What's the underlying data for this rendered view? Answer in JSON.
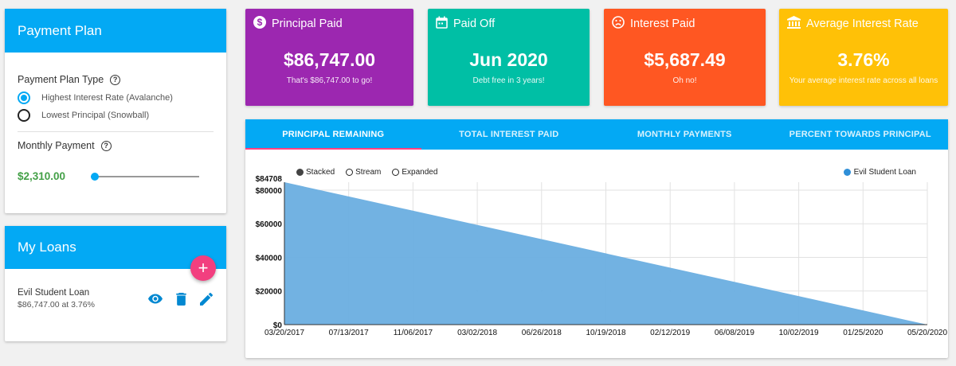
{
  "payment_plan": {
    "title": "Payment Plan",
    "plan_type_label": "Payment Plan Type",
    "options": [
      "Highest Interest Rate (Avalanche)",
      "Lowest Principal (Snowball)"
    ],
    "selected_option": "Highest Interest Rate (Avalanche)",
    "monthly_payment_label": "Monthly Payment",
    "monthly_payment_value": "$2,310.00",
    "slider_fraction": 0.0
  },
  "my_loans": {
    "title": "My Loans",
    "add_label": "+",
    "loans": [
      {
        "name": "Evil Student Loan",
        "detail": "$86,747.00 at 3.76%"
      }
    ]
  },
  "tiles": [
    {
      "title": "Principal Paid",
      "icon": "dollar-icon",
      "value": "$86,747.00",
      "sub": "That's $86,747.00 to go!",
      "color": "#9c27b0"
    },
    {
      "title": "Paid Off",
      "icon": "calendar-icon",
      "value": "Jun 2020",
      "sub": "Debt free in 3 years!",
      "color": "#00bfa5"
    },
    {
      "title": "Interest Paid",
      "icon": "sad-face-icon",
      "value": "$5,687.49",
      "sub": "Oh no!",
      "color": "#ff5722"
    },
    {
      "title": "Average Interest Rate",
      "icon": "bank-icon",
      "value": "3.76%",
      "sub": "Your average interest rate across all loans",
      "color": "#ffc107"
    }
  ],
  "chart_tabs": [
    "PRINCIPAL REMAINING",
    "TOTAL INTEREST PAID",
    "MONTHLY PAYMENTS",
    "PERCENT TOWARDS PRINCIPAL"
  ],
  "active_tab": "PRINCIPAL REMAINING",
  "chart_controls": [
    "Stacked",
    "Stream",
    "Expanded"
  ],
  "chart_control_selected": "Stacked",
  "chart_data": {
    "type": "area",
    "title": "",
    "xlabel": "",
    "ylabel": "",
    "x": [
      "03/20/2017",
      "05/20/2020"
    ],
    "series": [
      {
        "name": "Evil Student Loan",
        "values": [
          84708,
          0
        ],
        "color": "#6aaee0"
      }
    ],
    "x_tick_labels": [
      "03/20/2017",
      "07/13/2017",
      "11/06/2017",
      "03/02/2018",
      "06/26/2018",
      "10/19/2018",
      "02/12/2019",
      "06/08/2019",
      "10/02/2019",
      "01/25/2020",
      "05/20/2020"
    ],
    "y_tick_labels": [
      "$0",
      "$20000",
      "$40000",
      "$60000",
      "$80000",
      "$84708"
    ],
    "y_ticks": [
      0,
      20000,
      40000,
      60000,
      80000,
      84708
    ],
    "ylim": [
      0,
      84708
    ],
    "grid": true,
    "legend_position": "top-right"
  }
}
